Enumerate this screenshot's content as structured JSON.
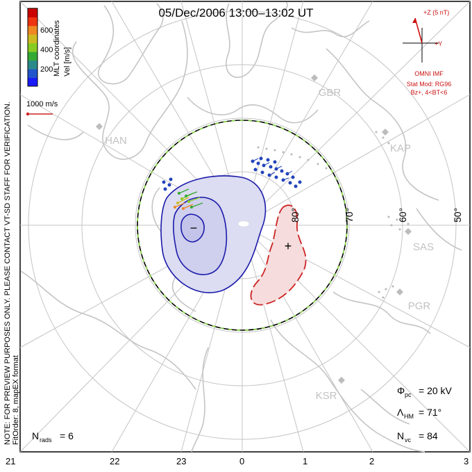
{
  "title": "05/Dec/2006 13:00–13:02 UT",
  "side_notes": {
    "left_vertical_1": "NOTE: FOR PREVIEW PURPOSES ONLY. PLEASE CONTACT VT-SD STAFF FOR VERIFICATION.",
    "left_vertical_2": "FitOrder: 8, mapEX format",
    "right_vertical": "MLT coordinates"
  },
  "colorbar": {
    "label": "Vel [m/s]",
    "ticks": [
      "600",
      "400",
      "200"
    ],
    "colors": [
      "#1a1aff",
      "#2255cc",
      "#2a8a8a",
      "#33aa33",
      "#88cc22",
      "#ccbb22",
      "#ee8822",
      "#ee3311",
      "#cc0000"
    ]
  },
  "reference_vector": {
    "label": "1000 m/s",
    "color": "#cc2222"
  },
  "imf": {
    "z_label": "+Z (5 nT)",
    "y_label": "+Y",
    "source": "OMNI IMF",
    "model": "Stat Mod: RG96",
    "bin": "Bz+, 4<BT<6",
    "color": "#cc1111"
  },
  "stations": [
    {
      "code": "GBR"
    },
    {
      "code": "HAN"
    },
    {
      "code": "KAP"
    },
    {
      "code": "SAS"
    },
    {
      "code": "PGR"
    },
    {
      "code": "KSR"
    }
  ],
  "latitude_labels": [
    "80°",
    "70°",
    "60°",
    "50°"
  ],
  "mlt_labels": [
    "21",
    "22",
    "23",
    "0",
    "1",
    "2",
    "3"
  ],
  "convection": {
    "min_symbol": "−",
    "max_symbol": "+",
    "negative_color": "#1a1aaa",
    "positive_color": "#cc2222"
  },
  "stats": {
    "phi_symbol": "Φ",
    "phi_sub": "pc",
    "phi_value": "= 20 kV",
    "lambda_symbol": "Λ",
    "lambda_sub": "HM",
    "lambda_value": "= 71°",
    "nvc_symbol": "N",
    "nvc_sub": "vc",
    "nvc_value": "= 84",
    "nrads_symbol": "N",
    "nrads_sub": "rads",
    "nrads_value": "= 6"
  }
}
